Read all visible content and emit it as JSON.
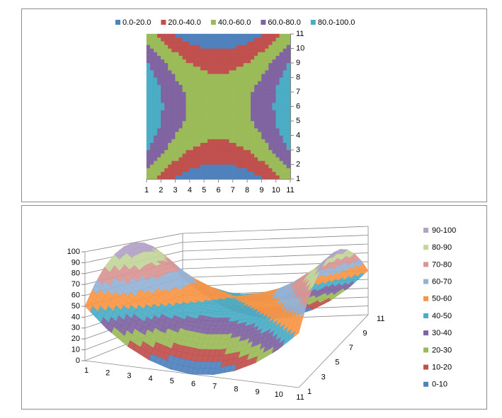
{
  "chart_data": [
    {
      "type": "contour",
      "categories": [
        1,
        2,
        3,
        4,
        5,
        6,
        7,
        8,
        9,
        10,
        11
      ],
      "series": [
        {
          "name": 1,
          "values": [
            50,
            32,
            18,
            8,
            2,
            0,
            2,
            8,
            18,
            32,
            50
          ]
        },
        {
          "name": 2,
          "values": [
            68,
            50,
            36,
            26,
            20,
            18,
            20,
            26,
            36,
            50,
            68
          ]
        },
        {
          "name": 3,
          "values": [
            82,
            64,
            50,
            40,
            34,
            32,
            34,
            40,
            50,
            64,
            82
          ]
        },
        {
          "name": 4,
          "values": [
            92,
            74,
            60,
            50,
            44,
            42,
            44,
            50,
            60,
            74,
            92
          ]
        },
        {
          "name": 5,
          "values": [
            98,
            80,
            66,
            56,
            50,
            48,
            50,
            56,
            66,
            80,
            98
          ]
        },
        {
          "name": 6,
          "values": [
            100,
            82,
            68,
            58,
            52,
            50,
            52,
            58,
            68,
            82,
            100
          ]
        },
        {
          "name": 7,
          "values": [
            98,
            80,
            66,
            56,
            50,
            48,
            50,
            56,
            66,
            80,
            98
          ]
        },
        {
          "name": 8,
          "values": [
            92,
            74,
            60,
            50,
            44,
            42,
            44,
            50,
            60,
            74,
            92
          ]
        },
        {
          "name": 9,
          "values": [
            82,
            64,
            50,
            40,
            34,
            32,
            34,
            40,
            50,
            64,
            82
          ]
        },
        {
          "name": 10,
          "values": [
            68,
            50,
            36,
            26,
            20,
            18,
            20,
            26,
            36,
            50,
            68
          ]
        },
        {
          "name": 11,
          "values": [
            50,
            32,
            18,
            8,
            2,
            0,
            2,
            8,
            18,
            32,
            50
          ]
        }
      ],
      "bands": [
        {
          "min": 0,
          "max": 20,
          "label": "0.0-20.0",
          "color": "#4f81bd"
        },
        {
          "min": 20,
          "max": 40,
          "label": "20.0-40.0",
          "color": "#c0504d"
        },
        {
          "min": 40,
          "max": 60,
          "label": "40.0-60.0",
          "color": "#9bbb59"
        },
        {
          "min": 60,
          "max": 80,
          "label": "60.0-80.0",
          "color": "#8064a2"
        },
        {
          "min": 80,
          "max": 100,
          "label": "80.0-100.0",
          "color": "#4bacc6"
        }
      ],
      "legend": "top"
    },
    {
      "type": "surface",
      "categories": [
        1,
        2,
        3,
        4,
        5,
        6,
        7,
        8,
        9,
        10,
        11
      ],
      "series": [
        {
          "name": 1,
          "values": [
            50,
            32,
            18,
            8,
            2,
            0,
            2,
            8,
            18,
            32,
            50
          ]
        },
        {
          "name": null,
          "values": [
            68,
            50,
            36,
            26,
            20,
            18,
            20,
            26,
            36,
            50,
            68
          ]
        },
        {
          "name": 3,
          "values": [
            82,
            64,
            50,
            40,
            34,
            32,
            34,
            40,
            50,
            64,
            82
          ]
        },
        {
          "name": null,
          "values": [
            92,
            74,
            60,
            50,
            44,
            42,
            44,
            50,
            60,
            74,
            92
          ]
        },
        {
          "name": 5,
          "values": [
            98,
            80,
            66,
            56,
            50,
            48,
            50,
            56,
            66,
            80,
            98
          ]
        },
        {
          "name": null,
          "values": [
            100,
            82,
            68,
            58,
            52,
            50,
            52,
            58,
            68,
            82,
            100
          ]
        },
        {
          "name": 7,
          "values": [
            98,
            80,
            66,
            56,
            50,
            48,
            50,
            56,
            66,
            80,
            98
          ]
        },
        {
          "name": null,
          "values": [
            92,
            74,
            60,
            50,
            44,
            42,
            44,
            50,
            60,
            74,
            92
          ]
        },
        {
          "name": 9,
          "values": [
            82,
            64,
            50,
            40,
            34,
            32,
            34,
            40,
            50,
            64,
            82
          ]
        },
        {
          "name": null,
          "values": [
            68,
            50,
            36,
            26,
            20,
            18,
            20,
            26,
            36,
            50,
            68
          ]
        },
        {
          "name": 11,
          "values": [
            50,
            32,
            18,
            8,
            2,
            0,
            2,
            8,
            18,
            32,
            50
          ]
        }
      ],
      "zlim": [
        0,
        100
      ],
      "zticks": [
        0,
        10,
        20,
        30,
        40,
        50,
        60,
        70,
        80,
        90,
        100
      ],
      "grid": true,
      "bands": [
        {
          "min": 0,
          "max": 10,
          "label": "0-10",
          "color": "#4f81bd"
        },
        {
          "min": 10,
          "max": 20,
          "label": "10-20",
          "color": "#c0504d"
        },
        {
          "min": 20,
          "max": 30,
          "label": "20-30",
          "color": "#9bbb59"
        },
        {
          "min": 30,
          "max": 40,
          "label": "30-40",
          "color": "#8064a2"
        },
        {
          "min": 40,
          "max": 50,
          "label": "40-50",
          "color": "#4bacc6"
        },
        {
          "min": 50,
          "max": 60,
          "label": "50-60",
          "color": "#f79646"
        },
        {
          "min": 60,
          "max": 70,
          "label": "60-70",
          "color": "#95b3d7"
        },
        {
          "min": 70,
          "max": 80,
          "label": "70-80",
          "color": "#d99694"
        },
        {
          "min": 80,
          "max": 90,
          "label": "80-90",
          "color": "#c3d69b"
        },
        {
          "min": 90,
          "max": 100,
          "label": "90-100",
          "color": "#b3a2c7"
        }
      ],
      "legend": "right"
    }
  ]
}
